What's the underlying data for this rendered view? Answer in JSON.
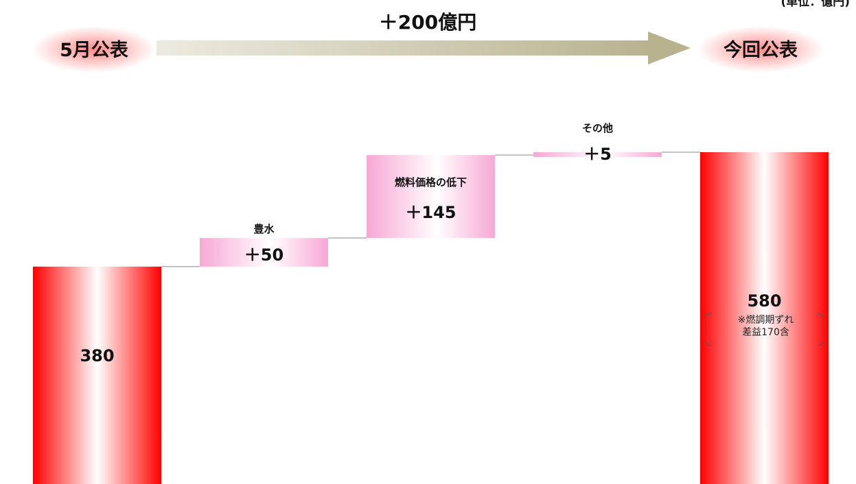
{
  "header": {
    "unit_label": "(単位：億円)",
    "start_label": "5月公表",
    "end_label": "今回公表",
    "total_change": "＋200億円"
  },
  "colors": {
    "total_bar": "#ff0000",
    "step_bar": "#f7a8d4",
    "arrow": "#c9c5a5",
    "connector": "#888888"
  },
  "chart_data": {
    "type": "bar",
    "subtype": "waterfall",
    "categories": [
      "5月公表",
      "豊水",
      "燃料価格の低下",
      "その他",
      "今回公表"
    ],
    "steps": [
      {
        "label": "",
        "kind": "total",
        "value": 380,
        "value_label": "380"
      },
      {
        "label": "豊水",
        "kind": "delta",
        "value": 50,
        "value_label": "＋50"
      },
      {
        "label": "燃料価格の低下",
        "kind": "delta",
        "value": 145,
        "value_label": "＋145"
      },
      {
        "label": "その他",
        "kind": "delta",
        "value": 5,
        "value_label": "＋5"
      },
      {
        "label": "",
        "kind": "total",
        "value": 580,
        "value_label": "580",
        "note": [
          "※燃調期ずれ",
          "差益170含"
        ]
      }
    ],
    "ylim": [
      0,
      580
    ]
  }
}
